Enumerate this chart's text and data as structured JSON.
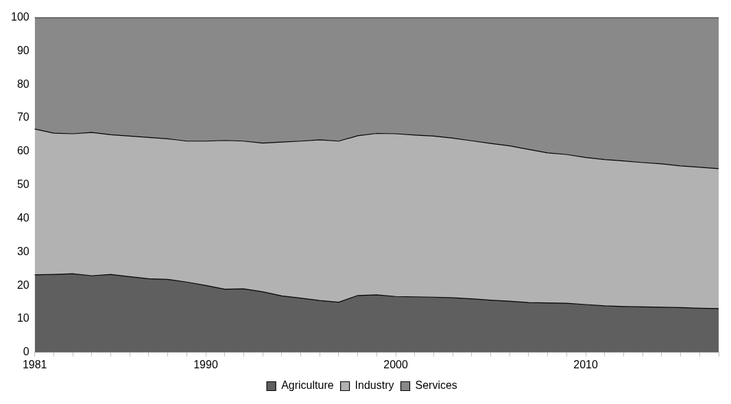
{
  "chart_data": {
    "type": "area",
    "stacked": true,
    "legend": "bottom",
    "grid": false,
    "categories": [
      "1981",
      null,
      null,
      null,
      null,
      null,
      null,
      null,
      null,
      "1990",
      null,
      null,
      null,
      null,
      null,
      null,
      null,
      null,
      null,
      "2000",
      null,
      null,
      null,
      null,
      null,
      null,
      null,
      null,
      null,
      "2010",
      null,
      null,
      null,
      null,
      null,
      null,
      null
    ],
    "ylim": [
      0,
      100
    ],
    "yticks": [
      0,
      10,
      20,
      30,
      40,
      50,
      60,
      70,
      80,
      90,
      100
    ],
    "series": [
      {
        "name": "Agriculture",
        "color": "#5f5f5f",
        "values": [
          23.2,
          23.3,
          23.5,
          22.9,
          23.3,
          22.6,
          22.0,
          21.8,
          21.0,
          20.0,
          18.9,
          19.0,
          18.1,
          16.9,
          16.2,
          15.5,
          15.0,
          17.0,
          17.2,
          16.7,
          16.6,
          16.5,
          16.3,
          16.0,
          15.6,
          15.3,
          14.9,
          14.8,
          14.7,
          14.3,
          13.9,
          13.7,
          13.6,
          13.5,
          13.4,
          13.2,
          13.1
        ]
      },
      {
        "name": "Industry",
        "color": "#b2b2b2",
        "values": [
          43.5,
          42.2,
          41.8,
          42.8,
          41.7,
          42.0,
          42.2,
          42.0,
          42.1,
          43.1,
          44.4,
          44.1,
          44.4,
          45.9,
          46.9,
          48.0,
          48.1,
          47.7,
          48.2,
          48.6,
          48.3,
          48.1,
          47.7,
          47.2,
          46.8,
          46.4,
          45.7,
          44.8,
          44.4,
          43.9,
          43.7,
          43.5,
          43.1,
          42.8,
          42.3,
          42.1,
          41.8
        ]
      },
      {
        "name": "Services",
        "color": "#898989",
        "values": [
          33.3,
          34.5,
          34.7,
          34.3,
          35.0,
          35.4,
          35.8,
          36.2,
          36.9,
          36.9,
          36.7,
          36.9,
          37.5,
          37.2,
          36.9,
          36.5,
          36.9,
          35.3,
          34.6,
          34.7,
          35.1,
          35.4,
          36.0,
          36.8,
          37.6,
          38.3,
          39.4,
          40.4,
          40.9,
          41.8,
          42.4,
          42.8,
          43.3,
          43.7,
          44.3,
          44.7,
          45.1
        ]
      }
    ]
  }
}
